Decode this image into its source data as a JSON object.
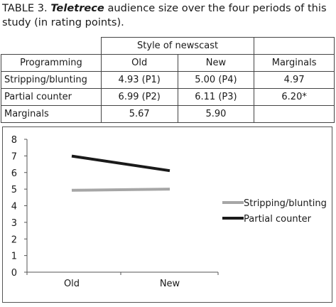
{
  "caption": {
    "prefix": "TABLE 3. ",
    "em": "Teletrece",
    "rest": " audience size over the four periods of this study (in rating points)."
  },
  "table": {
    "group_header": "Style of newscast",
    "headers": [
      "Programming",
      "Old",
      "New",
      "Marginals"
    ],
    "rows": [
      [
        "Stripping/blunting",
        "4.93 (P1)",
        "5.00 (P4)",
        "4.97"
      ],
      [
        "Partial counter",
        "6.99 (P2)",
        "6.11 (P3)",
        "6.20*"
      ],
      [
        "Marginals",
        "5.67",
        "5.90",
        ""
      ]
    ]
  },
  "chart_data": {
    "type": "line",
    "categories": [
      "Old",
      "New"
    ],
    "series": [
      {
        "name": "Stripping/blunting",
        "values": [
          4.93,
          5.0
        ],
        "color": "#a6a6a6"
      },
      {
        "name": "Partial counter",
        "values": [
          6.99,
          6.11
        ],
        "color": "#1a1a1a"
      }
    ],
    "ylim": [
      0,
      8
    ],
    "yticks": [
      "0",
      "1",
      "2",
      "3",
      "4",
      "5",
      "6",
      "7",
      "8"
    ],
    "grid": false,
    "legend": "right"
  }
}
